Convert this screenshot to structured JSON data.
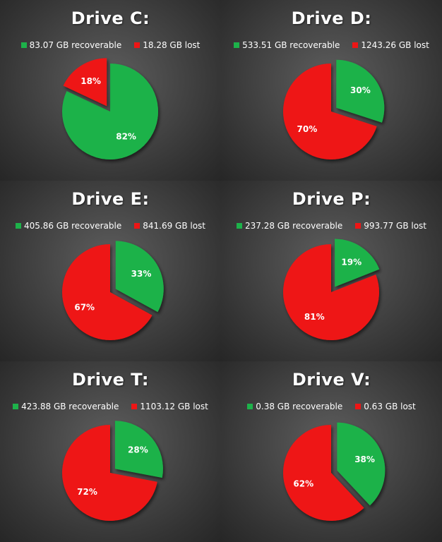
{
  "colors": {
    "recoverable": "#1db24a",
    "lost": "#ee1515"
  },
  "chart_data": [
    {
      "type": "pie",
      "title": "Drive C:",
      "legend": [
        "83.07 GB recoverable",
        "18.28 GB lost"
      ],
      "slices": [
        {
          "label": "82%",
          "value": 82,
          "key": "recoverable"
        },
        {
          "label": "18%",
          "value": 18,
          "key": "lost",
          "exploded": true
        }
      ]
    },
    {
      "type": "pie",
      "title": "Drive D:",
      "legend": [
        "533.51 GB recoverable",
        "1243.26 GB lost"
      ],
      "slices": [
        {
          "label": "30%",
          "value": 30,
          "key": "recoverable",
          "exploded": true
        },
        {
          "label": "70%",
          "value": 70,
          "key": "lost"
        }
      ]
    },
    {
      "type": "pie",
      "title": "Drive E:",
      "legend": [
        "405.86 GB recoverable",
        "841.69 GB lost"
      ],
      "slices": [
        {
          "label": "33%",
          "value": 33,
          "key": "recoverable",
          "exploded": true
        },
        {
          "label": "67%",
          "value": 67,
          "key": "lost"
        }
      ]
    },
    {
      "type": "pie",
      "title": "Drive P:",
      "legend": [
        "237.28 GB recoverable",
        "993.77 GB lost"
      ],
      "slices": [
        {
          "label": "19%",
          "value": 19,
          "key": "recoverable",
          "exploded": true
        },
        {
          "label": "81%",
          "value": 81,
          "key": "lost"
        }
      ]
    },
    {
      "type": "pie",
      "title": "Drive T:",
      "legend": [
        "423.88 GB recoverable",
        "1103.12 GB lost"
      ],
      "slices": [
        {
          "label": "28%",
          "value": 28,
          "key": "recoverable",
          "exploded": true
        },
        {
          "label": "72%",
          "value": 72,
          "key": "lost"
        }
      ]
    },
    {
      "type": "pie",
      "title": "Drive V:",
      "legend": [
        "0.38 GB recoverable",
        "0.63 GB lost"
      ],
      "slices": [
        {
          "label": "38%",
          "value": 38,
          "key": "recoverable",
          "exploded": true
        },
        {
          "label": "62%",
          "value": 62,
          "key": "lost"
        }
      ]
    }
  ]
}
